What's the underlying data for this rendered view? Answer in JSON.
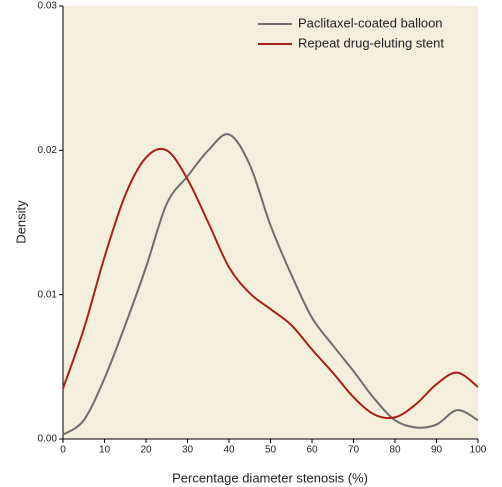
{
  "chart_data": {
    "type": "line",
    "x_label": "Percentage diameter stenosis (%)",
    "y_label": "Density",
    "x": [
      0,
      5,
      10,
      15,
      20,
      25,
      30,
      35,
      40,
      45,
      50,
      55,
      60,
      65,
      70,
      75,
      80,
      85,
      90,
      95,
      100
    ],
    "series": [
      {
        "name": "Paclitaxel-coated balloon",
        "color": "#6e6e6e",
        "values": [
          0.0003,
          0.0013,
          0.0042,
          0.0079,
          0.0119,
          0.0163,
          0.0182,
          0.02,
          0.0211,
          0.019,
          0.0148,
          0.0114,
          0.0084,
          0.0065,
          0.0047,
          0.0028,
          0.0013,
          0.0008,
          0.001,
          0.002,
          0.0013
        ]
      },
      {
        "name": "Repeat drug-eluting stent",
        "color": "#a8201a",
        "values": [
          0.0035,
          0.0076,
          0.0126,
          0.0169,
          0.0195,
          0.02,
          0.018,
          0.015,
          0.0119,
          0.0101,
          0.009,
          0.0079,
          0.0062,
          0.0046,
          0.0029,
          0.0017,
          0.0015,
          0.0024,
          0.0038,
          0.0046,
          0.0036
        ]
      }
    ],
    "xlim": [
      0,
      100
    ],
    "xticks": [
      0,
      10,
      20,
      30,
      40,
      50,
      60,
      70,
      80,
      90,
      100
    ],
    "ylim": [
      0,
      0.03
    ],
    "yticks": [
      {
        "value": 0,
        "label": "0.00"
      },
      {
        "value": 0.01,
        "label": "0.01"
      },
      {
        "value": 0.02,
        "label": "0.02"
      },
      {
        "value": 0.03,
        "label": "0.03"
      }
    ],
    "legend": "upper right",
    "background": "#f4efdc"
  }
}
